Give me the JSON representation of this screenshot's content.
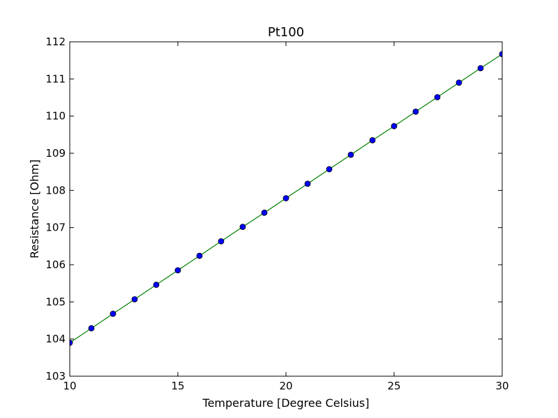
{
  "chart_data": {
    "type": "line",
    "title": "Pt100",
    "xlabel": "Temperature [Degree Celsius]",
    "ylabel": "Resistance [Ohm]",
    "xlim": [
      10,
      30
    ],
    "ylim": [
      103,
      112
    ],
    "xticks": [
      10,
      15,
      20,
      25,
      30
    ],
    "yticks": [
      103,
      104,
      105,
      106,
      107,
      108,
      109,
      110,
      111,
      112
    ],
    "grid": false,
    "series": [
      {
        "style": "line",
        "color": "#008000",
        "x": [
          10,
          11,
          12,
          13,
          14,
          15,
          16,
          17,
          18,
          19,
          20,
          21,
          22,
          23,
          24,
          25,
          26,
          27,
          28,
          29,
          30
        ],
        "y": [
          103.9,
          104.29,
          104.68,
          105.07,
          105.46,
          105.85,
          106.24,
          106.63,
          107.02,
          107.4,
          107.79,
          108.18,
          108.57,
          108.96,
          109.35,
          109.73,
          110.12,
          110.51,
          110.9,
          111.29,
          111.67
        ]
      },
      {
        "style": "markers",
        "color": "#0000ff",
        "x": [
          10,
          11,
          12,
          13,
          14,
          15,
          16,
          17,
          18,
          19,
          20,
          21,
          22,
          23,
          24,
          25,
          26,
          27,
          28,
          29,
          30
        ],
        "y": [
          103.9,
          104.29,
          104.68,
          105.07,
          105.46,
          105.85,
          106.24,
          106.63,
          107.02,
          107.4,
          107.79,
          108.18,
          108.57,
          108.96,
          109.35,
          109.73,
          110.12,
          110.51,
          110.9,
          111.29,
          111.67
        ]
      }
    ]
  }
}
